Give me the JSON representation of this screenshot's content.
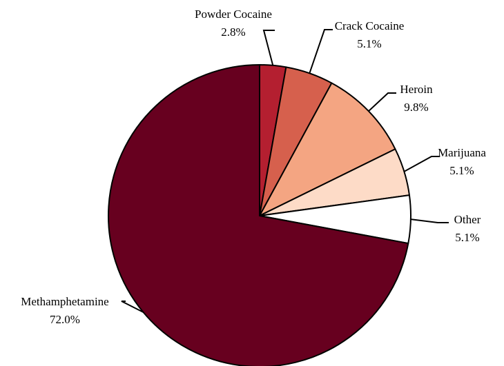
{
  "chart_data": {
    "type": "pie",
    "title": "",
    "start": "12 o'clock",
    "direction": "clockwise",
    "slices": [
      {
        "label": "Powder Cocaine",
        "value": 2.8,
        "value_label": "2.8%",
        "color": "#b41f30"
      },
      {
        "label": "Crack Cocaine",
        "value": 5.1,
        "value_label": "5.1%",
        "color": "#d6604d"
      },
      {
        "label": "Heroin",
        "value": 9.8,
        "value_label": "9.8%",
        "color": "#f4a582"
      },
      {
        "label": "Marijuana",
        "value": 5.1,
        "value_label": "5.1%",
        "color": "#fddbc7"
      },
      {
        "label": "Other",
        "value": 5.1,
        "value_label": "5.1%",
        "color": "#ffffff"
      },
      {
        "label": "Methamphetamine",
        "value": 72.0,
        "value_label": "72.0%",
        "color": "#67001f"
      }
    ],
    "outline_color": "#000000"
  }
}
